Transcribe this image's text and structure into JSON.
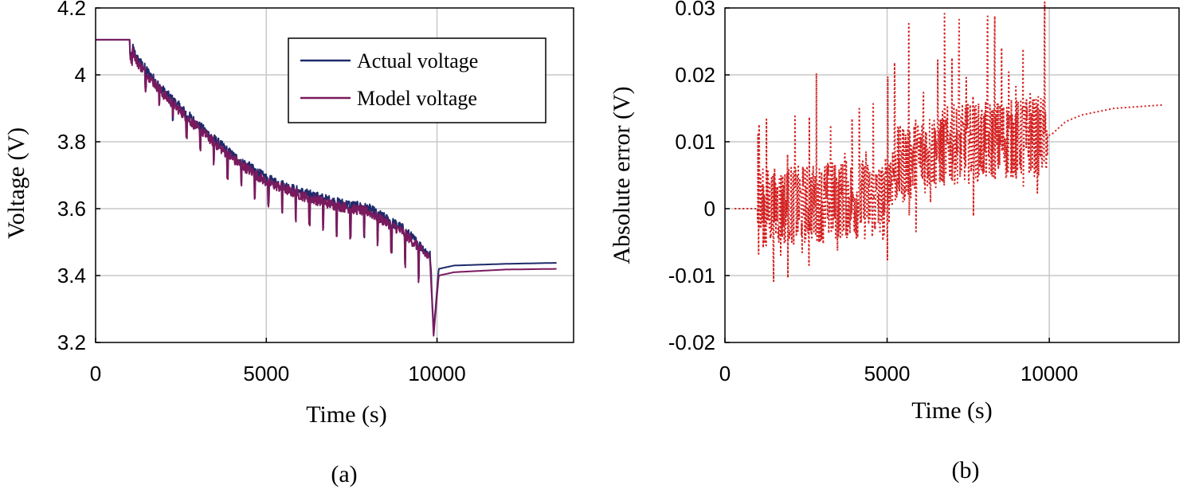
{
  "chart_data": [
    {
      "type": "line",
      "panel": "(a)",
      "xlabel": "Time (s)",
      "ylabel": "Voltage (V)",
      "xlim": [
        0,
        14000
      ],
      "ylim": [
        3.2,
        4.2
      ],
      "xticks": [
        0,
        5000,
        10000
      ],
      "yticks": [
        3.2,
        3.4,
        3.6,
        3.8,
        4.0,
        4.2
      ],
      "xtick_labels": [
        "0",
        "5000",
        "10000"
      ],
      "ytick_labels": [
        "3.2",
        "3.4",
        "3.6",
        "3.8",
        "4",
        "4.2"
      ],
      "grid": true,
      "legend_position": "top-right",
      "series": [
        {
          "name": "Actual voltage",
          "color": "#1f2a6b",
          "x": [
            0,
            1000,
            1200,
            2000,
            3000,
            4000,
            5000,
            6000,
            7000,
            8000,
            9000,
            9800,
            9900,
            10050,
            10500,
            12000,
            13500
          ],
          "y": [
            4.105,
            4.105,
            4.05,
            3.95,
            3.85,
            3.76,
            3.69,
            3.65,
            3.62,
            3.6,
            3.54,
            3.46,
            3.23,
            3.42,
            3.43,
            3.435,
            3.438
          ]
        },
        {
          "name": "Model voltage",
          "color": "#7a1a5e",
          "x": [
            0,
            1000,
            1200,
            2000,
            3000,
            4000,
            5000,
            6000,
            7000,
            8000,
            9000,
            9800,
            9900,
            10050,
            10500,
            12000,
            13500
          ],
          "y": [
            4.105,
            4.105,
            4.04,
            3.94,
            3.84,
            3.75,
            3.68,
            3.64,
            3.61,
            3.59,
            3.53,
            3.45,
            3.22,
            3.4,
            3.41,
            3.418,
            3.42
          ]
        }
      ]
    },
    {
      "type": "line",
      "panel": "(b)",
      "xlabel": "Time (s)",
      "ylabel": "Absolute error (V)",
      "xlim": [
        0,
        14000
      ],
      "ylim": [
        -0.02,
        0.03
      ],
      "xticks": [
        0,
        5000,
        10000
      ],
      "yticks": [
        -0.02,
        -0.01,
        0,
        0.01,
        0.02,
        0.03
      ],
      "xtick_labels": [
        "0",
        "5000",
        "10000"
      ],
      "ytick_labels": [
        "-0.02",
        "-0.01",
        "0",
        "0.01",
        "0.02",
        "0.03"
      ],
      "grid": true,
      "series": [
        {
          "name": "Absolute error",
          "color": "#d42020",
          "style": "dotted",
          "x": [
            300,
            1000,
            2000,
            3000,
            4000,
            4900,
            5200,
            6000,
            7000,
            8000,
            9000,
            9950,
            10050,
            10500,
            11000,
            12000,
            13500
          ],
          "y": [
            0,
            0,
            0.0005,
            0.001,
            0.0015,
            0.001,
            0.006,
            0.008,
            0.0095,
            0.01,
            0.0105,
            0.011,
            0.011,
            0.013,
            0.014,
            0.015,
            0.0155
          ]
        }
      ]
    }
  ],
  "captions": [
    "(a)",
    "(b)"
  ]
}
